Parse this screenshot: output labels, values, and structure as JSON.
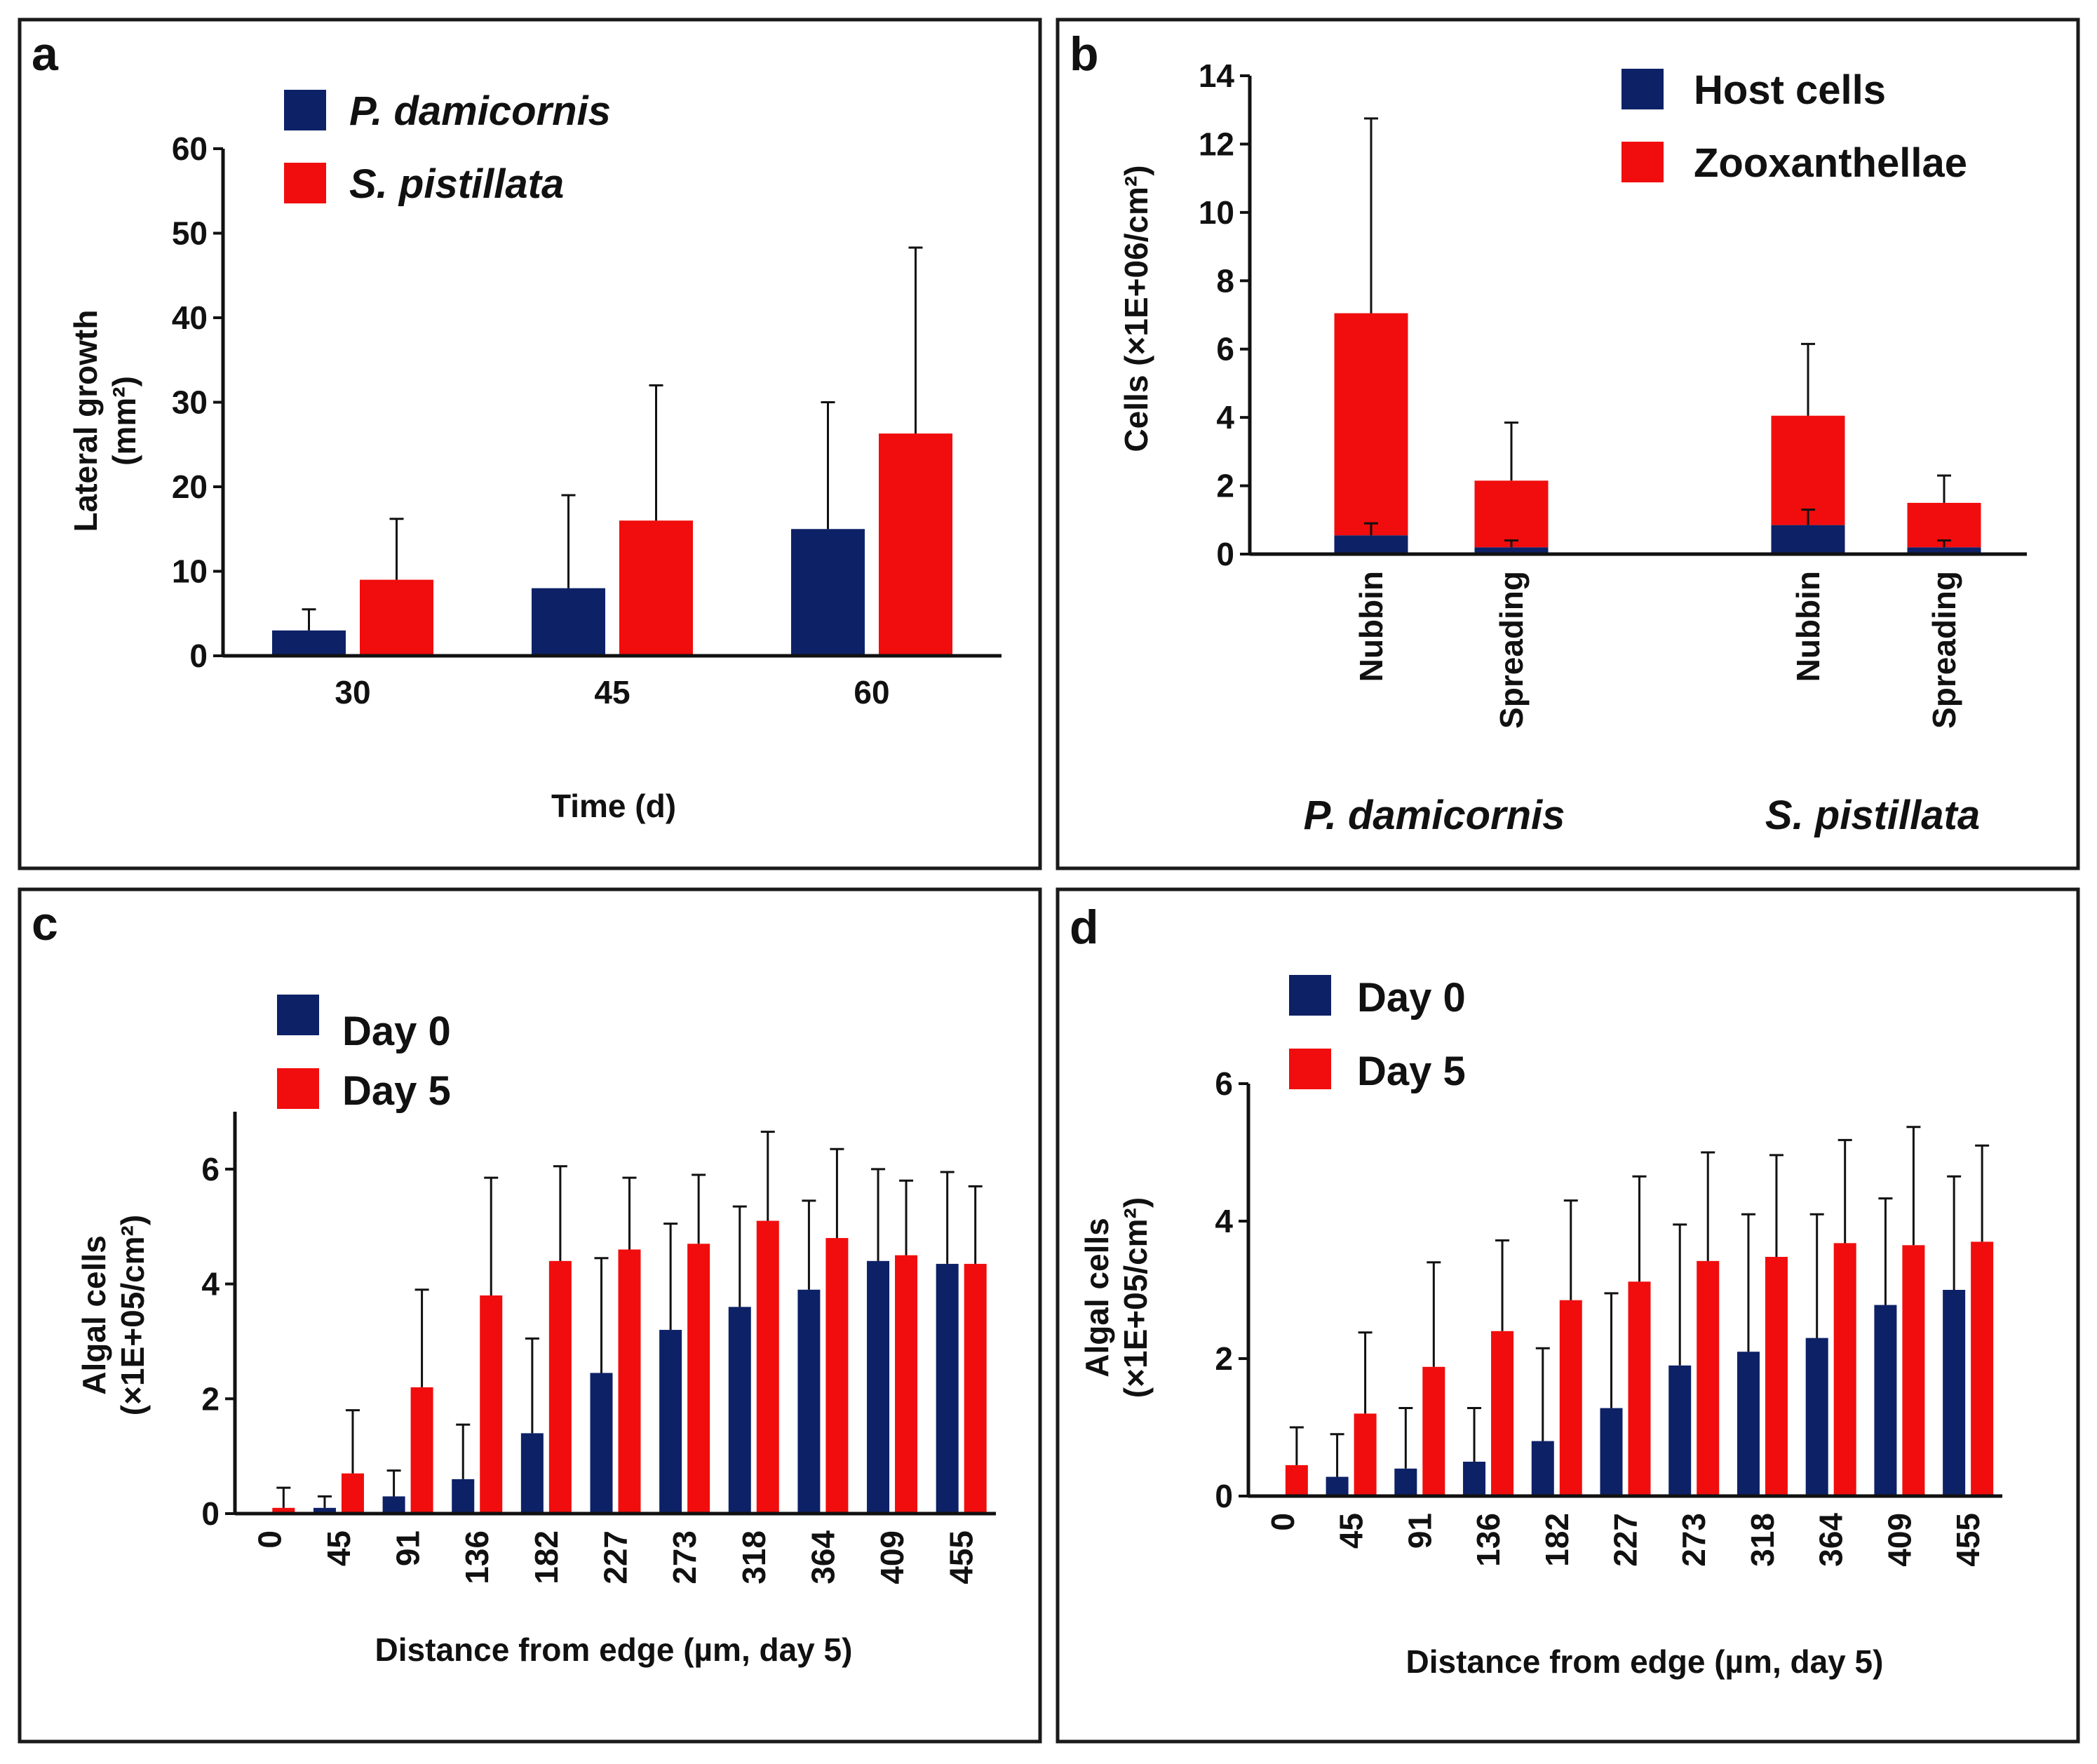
{
  "colors": {
    "navy": "#0d2167",
    "red": "#f10d0d"
  },
  "chart_data": [
    {
      "panel": "a",
      "type": "bar",
      "title": "",
      "xlabel": "Time (d)",
      "ylabel_lines": [
        "Lateral growth",
        "(mm²)"
      ],
      "categories": [
        "30",
        "45",
        "60"
      ],
      "ylim": [
        0,
        60
      ],
      "yticks": [
        0,
        10,
        20,
        30,
        40,
        50,
        60
      ],
      "legend_placement": "top-left",
      "series": [
        {
          "name": "P. damicornis",
          "color": "navy",
          "values": [
            3,
            8,
            15
          ],
          "errors": [
            2.5,
            11,
            15
          ]
        },
        {
          "name": "S. pistillata",
          "color": "red",
          "values": [
            9,
            16,
            26.3
          ],
          "errors": [
            7.2,
            16,
            22
          ]
        }
      ]
    },
    {
      "panel": "b",
      "type": "bar",
      "stacked": true,
      "title": "",
      "xlabel": "",
      "ylabel": "Cells (×1E+06/cm²)",
      "categories": [
        "Nubbin",
        "Spreading",
        "Nubbin",
        "Spreading"
      ],
      "groups": [
        {
          "name": "P. damicornis",
          "categories": [
            0,
            1
          ]
        },
        {
          "name": "S. pistillata",
          "categories": [
            2,
            3
          ]
        }
      ],
      "ylim": [
        0,
        14
      ],
      "yticks": [
        0,
        2,
        4,
        6,
        8,
        10,
        12,
        14
      ],
      "legend_placement": "top-right",
      "series": [
        {
          "name": "Host cells",
          "color": "navy",
          "values": [
            0.55,
            0.2,
            0.85,
            0.2
          ],
          "errors": [
            0.35,
            0.2,
            0.45,
            0.2
          ]
        },
        {
          "name": "Zooxanthellae",
          "color": "red",
          "values": [
            6.5,
            1.95,
            3.2,
            1.3
          ],
          "errors": [
            5.7,
            1.7,
            2.1,
            0.8
          ]
        }
      ]
    },
    {
      "panel": "c",
      "type": "bar",
      "title": "",
      "xlabel": "Distance from edge (µm, day 5)",
      "ylabel_lines": [
        "Algal cells",
        "(×1E+05/cm²)"
      ],
      "categories": [
        "0",
        "45",
        "91",
        "136",
        "182",
        "227",
        "273",
        "318",
        "364",
        "409",
        "455"
      ],
      "ylim": [
        0,
        7
      ],
      "yticks": [
        0,
        2,
        4,
        6
      ],
      "legend_placement": "top-left",
      "series": [
        {
          "name": "Day 0",
          "color": "navy",
          "values": [
            0,
            0.1,
            0.3,
            0.6,
            1.4,
            2.45,
            3.2,
            3.6,
            3.9,
            4.4,
            4.35
          ],
          "errors": [
            0,
            0.2,
            0.45,
            0.95,
            1.65,
            2.0,
            1.85,
            1.75,
            1.55,
            1.6,
            1.6
          ]
        },
        {
          "name": "Day 5",
          "color": "red",
          "values": [
            0.1,
            0.7,
            2.2,
            3.8,
            4.4,
            4.6,
            4.7,
            5.1,
            4.8,
            4.5,
            4.35
          ],
          "errors": [
            0.35,
            1.1,
            1.7,
            2.05,
            1.65,
            1.25,
            1.2,
            1.55,
            1.55,
            1.3,
            1.35
          ]
        }
      ]
    },
    {
      "panel": "d",
      "type": "bar",
      "title": "",
      "xlabel": "Distance from edge (µm, day 5)",
      "ylabel_lines": [
        "Algal cells",
        "(×1E+05/cm²)"
      ],
      "categories": [
        "0",
        "45",
        "91",
        "136",
        "182",
        "227",
        "273",
        "318",
        "364",
        "409",
        "455"
      ],
      "ylim": [
        0,
        6
      ],
      "yticks": [
        0,
        2,
        4,
        6
      ],
      "legend_placement": "top-left",
      "series": [
        {
          "name": "Day 0",
          "color": "navy",
          "values": [
            0,
            0.28,
            0.4,
            0.5,
            0.8,
            1.28,
            1.9,
            2.1,
            2.3,
            2.78,
            3.0
          ],
          "errors": [
            0,
            0.62,
            0.88,
            0.78,
            1.35,
            1.67,
            2.05,
            2.0,
            1.8,
            1.55,
            1.65
          ]
        },
        {
          "name": "Day 5",
          "color": "red",
          "values": [
            0.45,
            1.2,
            1.88,
            2.4,
            2.85,
            3.12,
            3.42,
            3.48,
            3.68,
            3.65,
            3.7
          ],
          "errors": [
            0.55,
            1.18,
            1.52,
            1.32,
            1.45,
            1.53,
            1.58,
            1.48,
            1.5,
            1.72,
            1.4
          ]
        }
      ]
    }
  ]
}
